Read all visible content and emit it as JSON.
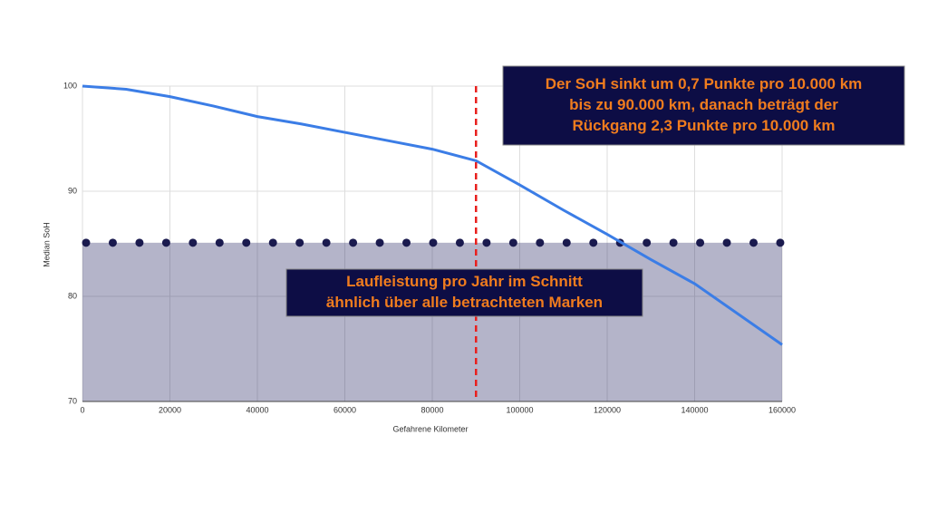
{
  "chart_data": {
    "type": "line",
    "x_label": "Gefahrene Kilometer",
    "y_label": "Median SoH",
    "x": [
      0,
      10000,
      20000,
      30000,
      40000,
      50000,
      60000,
      70000,
      80000,
      90000,
      100000,
      110000,
      120000,
      130000,
      140000,
      160000
    ],
    "series": [
      {
        "name": "Median SoH",
        "color": "#3b7de6",
        "values": [
          100,
          99.7,
          99,
          98.1,
          97.1,
          96.4,
          95.6,
          94.8,
          94,
          92.9,
          90.6,
          88.2,
          85.9,
          83.5,
          81.2,
          75.4
        ]
      }
    ],
    "xlim": [
      0,
      160000
    ],
    "xticks": [
      0,
      20000,
      40000,
      60000,
      80000,
      100000,
      120000,
      140000,
      160000
    ],
    "ylim": [
      70,
      100
    ],
    "yticks": [
      70,
      80,
      90,
      100
    ],
    "grid": true,
    "reference_line": {
      "value": 85.1,
      "color": "#1a1a4e",
      "fill": "rgba(40,40,100,0.35)"
    },
    "vertical_line": {
      "value": 90000,
      "color": "#e8201e"
    },
    "annotations": [
      {
        "lines": [
          "Der SoH sinkt um 0,7 Punkte pro 10.000 km",
          "bis zu 90.000 km, danach beträgt der",
          "Rückgang 2,3 Punkte pro 10.000 km"
        ]
      },
      {
        "lines": [
          "Laufleistung pro Jahr im Schnitt",
          "ähnlich über alle betrachteten Marken"
        ]
      }
    ]
  }
}
